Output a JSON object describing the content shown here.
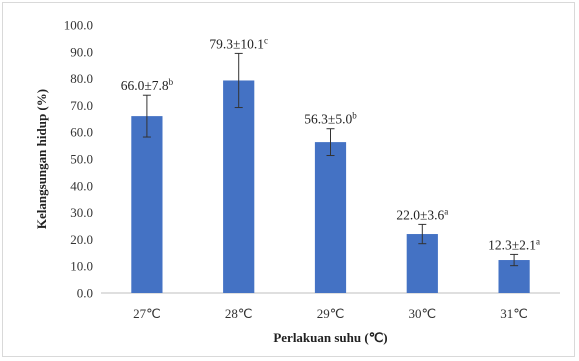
{
  "chart_data": {
    "type": "bar",
    "xlabel": "Perlakuan suhu (℃)",
    "ylabel": "Kelangsungan hidup (%)",
    "ylim": [
      0,
      100
    ],
    "yticks": [
      "0.0",
      "10.0",
      "20.0",
      "30.0",
      "40.0",
      "50.0",
      "60.0",
      "70.0",
      "80.0",
      "90.0",
      "100.0"
    ],
    "grid": false,
    "bar_color": "#4472c4",
    "categories": [
      "27℃",
      "28℃",
      "29℃",
      "30℃",
      "31℃"
    ],
    "values": [
      66.0,
      79.3,
      56.3,
      22.0,
      12.3
    ],
    "errors": [
      7.8,
      10.1,
      5.0,
      3.6,
      2.1
    ],
    "labels": [
      {
        "text": "66.0±7.8",
        "sup": "b"
      },
      {
        "text": "79.3±10.1",
        "sup": "c"
      },
      {
        "text": "56.3±5.0",
        "sup": "b"
      },
      {
        "text": "22.0±3.6",
        "sup": "a"
      },
      {
        "text": "12.3±2.1",
        "sup": "a"
      }
    ]
  }
}
